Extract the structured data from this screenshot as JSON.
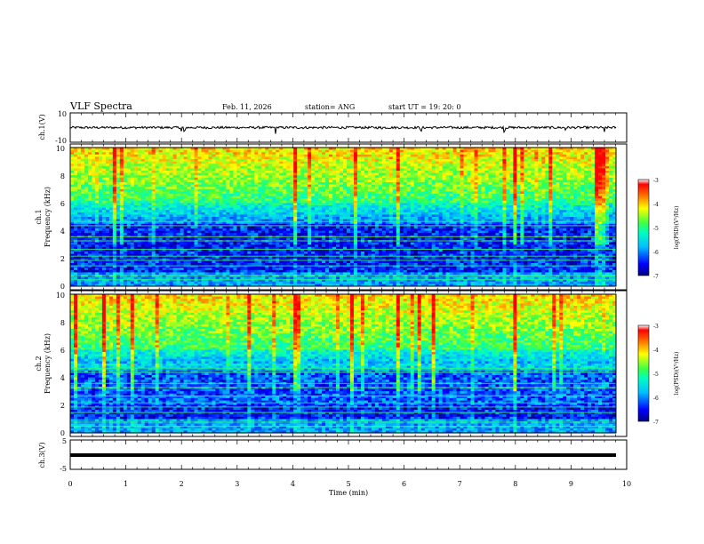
{
  "header": {
    "title": "VLF Spectra",
    "date": "Feb. 11, 2026",
    "station": "station= ANG",
    "start_ut": "start  UT  =   19: 20: 0"
  },
  "chart_data": [
    {
      "type": "line",
      "id": "ch1-waveform",
      "ylabel": "ch.1(V)",
      "ylim": [
        -10,
        10
      ],
      "yticks": [
        "10",
        "-10"
      ],
      "xlim": [
        0,
        10
      ],
      "baseline_level": 0,
      "description_values": {
        "noise_amplitude_v": 1,
        "spike_minutes": [
          2.0,
          2.05,
          2.4,
          3.7,
          5.6,
          6.3,
          6.6,
          7.8,
          8.9,
          9.6
        ]
      }
    },
    {
      "type": "heatmap",
      "id": "ch1-spectrogram",
      "ylabel_line1": "ch.1",
      "ylabel_line2": "Frequency (kHz)",
      "ylim": [
        0,
        10
      ],
      "yticks": [
        "0",
        "2",
        "4",
        "6",
        "8",
        "10"
      ],
      "xlim": [
        0,
        10
      ],
      "colorbar": {
        "label": "log(PSD)(V²/Hz)",
        "range": [
          -7,
          -3
        ],
        "ticks": [
          "-3",
          "-4",
          "-5",
          "-6",
          "-7"
        ]
      }
    },
    {
      "type": "heatmap",
      "id": "ch2-spectrogram",
      "ylabel_line1": "ch.2",
      "ylabel_line2": "Frequency (kHz)",
      "ylim": [
        0,
        10
      ],
      "yticks": [
        "0",
        "2",
        "4",
        "6",
        "8",
        "10"
      ],
      "xlim": [
        0,
        10
      ],
      "colorbar": {
        "label": "log(PSD)(V²/Hz)",
        "range": [
          -7,
          -3
        ],
        "ticks": [
          "-3",
          "-4",
          "-5",
          "-6",
          "-7"
        ]
      }
    },
    {
      "type": "line",
      "id": "ch3-waveform",
      "ylabel": "ch.3(V)",
      "ylim": [
        -5,
        5
      ],
      "yticks": [
        "5",
        "-5"
      ],
      "xlim": [
        0,
        10
      ],
      "baseline_level": -0.2
    }
  ],
  "xaxis": {
    "label": "Time  (min)",
    "ticks": [
      "0",
      "1",
      "2",
      "3",
      "4",
      "5",
      "6",
      "7",
      "8",
      "9",
      "10"
    ]
  },
  "colors": {
    "background": "#ffffff",
    "axis": "#000000"
  }
}
